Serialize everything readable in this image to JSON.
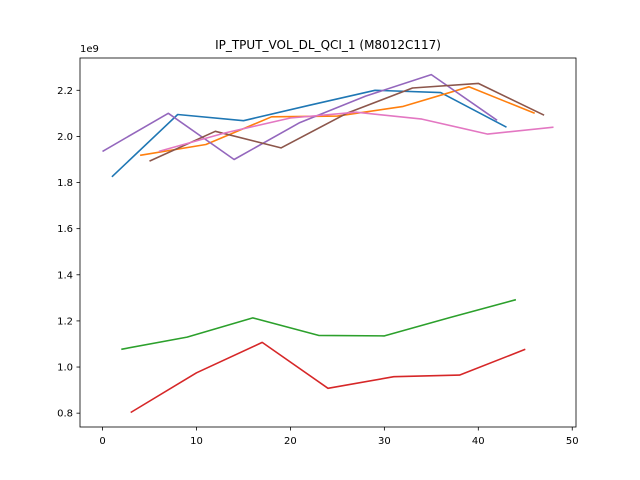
{
  "chart_data": {
    "type": "line",
    "title": "IP_TPUT_VOL_DL_QCI_1 (M8012C117)",
    "xlabel": "",
    "ylabel": "",
    "y_offset_label": "1e9",
    "xlim": [
      -2.4,
      50.4
    ],
    "ylim": [
      0.74,
      2.34
    ],
    "x_ticks": [
      0,
      10,
      20,
      30,
      40,
      50
    ],
    "y_ticks": [
      0.8,
      1.0,
      1.2,
      1.4,
      1.6,
      1.8,
      2.0,
      2.2
    ],
    "y_tick_labels": [
      "0.8",
      "1.0",
      "1.2",
      "1.4",
      "1.6",
      "1.8",
      "2.0",
      "2.2"
    ],
    "grid": false,
    "series": [
      {
        "color": "#1f77b4",
        "x": [
          1,
          8,
          15,
          22,
          29,
          36,
          43
        ],
        "y": [
          1.825,
          2.095,
          2.068,
          2.135,
          2.2,
          2.19,
          2.04
        ]
      },
      {
        "color": "#ff7f0e",
        "x": [
          4,
          11,
          18,
          25,
          32,
          39,
          46
        ],
        "y": [
          1.918,
          1.965,
          2.085,
          2.088,
          2.13,
          2.215,
          2.1
        ]
      },
      {
        "color": "#2ca02c",
        "x": [
          2,
          9,
          16,
          23,
          30,
          37,
          44
        ],
        "y": [
          1.077,
          1.13,
          1.213,
          1.137,
          1.135,
          1.215,
          1.292
        ]
      },
      {
        "color": "#d62728",
        "x": [
          3,
          10,
          17,
          24,
          31,
          38,
          45
        ],
        "y": [
          0.803,
          0.975,
          1.107,
          0.908,
          0.958,
          0.965,
          1.077
        ]
      },
      {
        "color": "#9467bd",
        "x": [
          0,
          7,
          14,
          21,
          28,
          35,
          42
        ],
        "y": [
          1.935,
          2.1,
          1.9,
          2.06,
          2.175,
          2.268,
          2.07
        ]
      },
      {
        "color": "#8c564b",
        "x": [
          5,
          12,
          19,
          26,
          33,
          40,
          47
        ],
        "y": [
          1.893,
          2.022,
          1.95,
          2.1,
          2.21,
          2.23,
          2.092
        ]
      },
      {
        "color": "#e377c2",
        "x": [
          6,
          13,
          20,
          27,
          34,
          41,
          48
        ],
        "y": [
          1.935,
          2.015,
          2.08,
          2.105,
          2.075,
          2.01,
          2.04
        ]
      }
    ]
  }
}
